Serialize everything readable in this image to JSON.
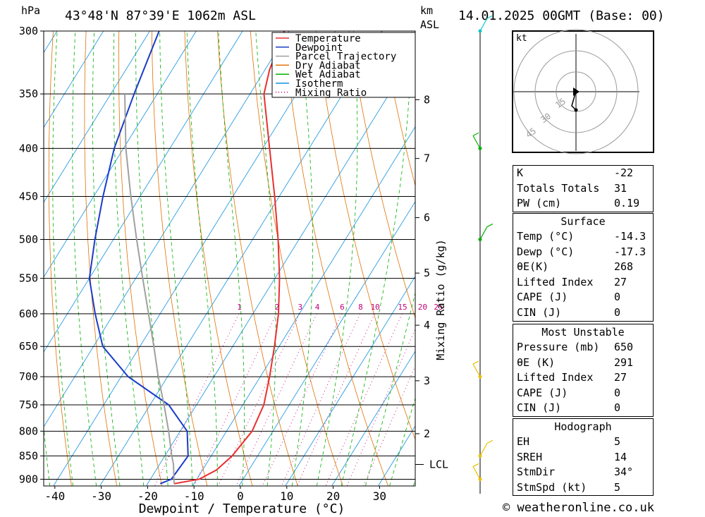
{
  "header": {
    "title": "43°48'N 87°39'E 1062m ASL",
    "date": "14.01.2025 00GMT (Base: 00)",
    "left_unit": "hPa",
    "km_label": "km",
    "asl_label": "ASL"
  },
  "footer": {
    "site": "© weatheronline.co.uk"
  },
  "legend": [
    {
      "label": "Temperature",
      "color": "#e83030",
      "style": "solid"
    },
    {
      "label": "Dewpoint",
      "color": "#1a3cc8",
      "style": "solid"
    },
    {
      "label": "Parcel Trajectory",
      "color": "#a0a0a0",
      "style": "solid"
    },
    {
      "label": "Dry Adiabat",
      "color": "#e07000",
      "style": "solid"
    },
    {
      "label": "Wet Adiabat",
      "color": "#00b000",
      "style": "solid"
    },
    {
      "label": "Isotherm",
      "color": "#1090e0",
      "style": "solid"
    },
    {
      "label": "Mixing Ratio",
      "color": "#c0007a",
      "style": "dotted"
    }
  ],
  "chart_data": {
    "type": "line",
    "xlabel": "Dewpoint / Temperature (°C)",
    "ylabel_right": "Mixing Ratio (g/kg)",
    "x_ticks": [
      -40,
      -30,
      -20,
      -10,
      0,
      10,
      20,
      30
    ],
    "pressure_levels": [
      300,
      350,
      400,
      450,
      500,
      550,
      600,
      650,
      700,
      750,
      800,
      850,
      900
    ],
    "km_ticks": [
      {
        "label": "8",
        "p": 355
      },
      {
        "label": "7",
        "p": 410
      },
      {
        "label": "6",
        "p": 474
      },
      {
        "label": "5",
        "p": 543
      },
      {
        "label": "4",
        "p": 617
      },
      {
        "label": "3",
        "p": 707
      },
      {
        "label": "2",
        "p": 805
      }
    ],
    "lcl": {
      "label": "LCL",
      "p": 868
    },
    "mixing_ratio_labels": [
      "1",
      "2",
      "3",
      "4",
      "6",
      "8",
      "10",
      "15",
      "20",
      "25"
    ],
    "mixing_ratio_values": [
      1,
      2,
      3,
      4,
      6,
      8,
      10,
      15,
      20,
      25
    ],
    "series": [
      {
        "name": "Temperature",
        "color": "#e83030",
        "points": [
          [
            910,
            -14.3
          ],
          [
            900,
            -9.5
          ],
          [
            880,
            -7.0
          ],
          [
            850,
            -5.5
          ],
          [
            800,
            -4.5
          ],
          [
            750,
            -5.5
          ],
          [
            700,
            -8.0
          ],
          [
            650,
            -11.0
          ],
          [
            600,
            -14.5
          ],
          [
            550,
            -19.0
          ],
          [
            500,
            -24.5
          ],
          [
            450,
            -31.0
          ],
          [
            400,
            -38.5
          ],
          [
            350,
            -47.0
          ],
          [
            330,
            -49.0
          ],
          [
            300,
            -51.0
          ]
        ]
      },
      {
        "name": "Dewpoint",
        "color": "#1a3cc8",
        "points": [
          [
            910,
            -17.3
          ],
          [
            900,
            -15.5
          ],
          [
            850,
            -15.0
          ],
          [
            800,
            -18.5
          ],
          [
            750,
            -26.0
          ],
          [
            700,
            -38.5
          ],
          [
            650,
            -48.0
          ],
          [
            600,
            -54.0
          ],
          [
            550,
            -60.0
          ],
          [
            500,
            -64.0
          ],
          [
            450,
            -68.0
          ],
          [
            400,
            -72.0
          ],
          [
            350,
            -75.0
          ],
          [
            300,
            -78.0
          ]
        ]
      },
      {
        "name": "Parcel Trajectory",
        "color": "#a0a0a0",
        "points": [
          [
            910,
            -14.3
          ],
          [
            868,
            -17.0
          ],
          [
            850,
            -18.5
          ],
          [
            800,
            -22.5
          ],
          [
            750,
            -27.0
          ],
          [
            700,
            -32.0
          ],
          [
            650,
            -37.0
          ],
          [
            600,
            -42.5
          ],
          [
            550,
            -48.5
          ],
          [
            500,
            -55.0
          ],
          [
            450,
            -62.0
          ],
          [
            400,
            -69.5
          ],
          [
            350,
            -77.0
          ]
        ]
      }
    ]
  },
  "wind_profile": {
    "colors": [
      "#10c8c8",
      "#00b000",
      "#00b000",
      "#e8c000",
      "#e8c000",
      "#e8c000"
    ]
  },
  "hodograph": {
    "unit": "kt",
    "rings": [
      "15",
      "30",
      "45"
    ]
  },
  "indices": {
    "k_label": "K",
    "k_value": "-22",
    "tt_label": "Totals Totals",
    "tt_value": "31",
    "pw_label": "PW (cm)",
    "pw_value": "0.19"
  },
  "surface": {
    "title": "Surface",
    "temp_label": "Temp (°C)",
    "temp_value": "-14.3",
    "dewp_label": "Dewp (°C)",
    "dewp_value": "-17.3",
    "theta_label": "θE(K)",
    "theta_value": "268",
    "li_label": "Lifted Index",
    "li_value": "27",
    "cape_label": "CAPE (J)",
    "cape_value": "0",
    "cin_label": "CIN (J)",
    "cin_value": "0"
  },
  "most_unstable": {
    "title": "Most Unstable",
    "pressure_label": "Pressure (mb)",
    "pressure_value": "650",
    "theta_label": "θE (K)",
    "theta_value": "291",
    "li_label": "Lifted Index",
    "li_value": "27",
    "cape_label": "CAPE (J)",
    "cape_value": "0",
    "cin_label": "CIN (J)",
    "cin_value": "0"
  },
  "hodograph_table": {
    "title": "Hodograph",
    "eh_label": "EH",
    "eh_value": "5",
    "sreh_label": "SREH",
    "sreh_value": "14",
    "stmdir_label": "StmDir",
    "stmdir_value": "34°",
    "stmspd_label": "StmSpd (kt)",
    "stmspd_value": "5"
  }
}
